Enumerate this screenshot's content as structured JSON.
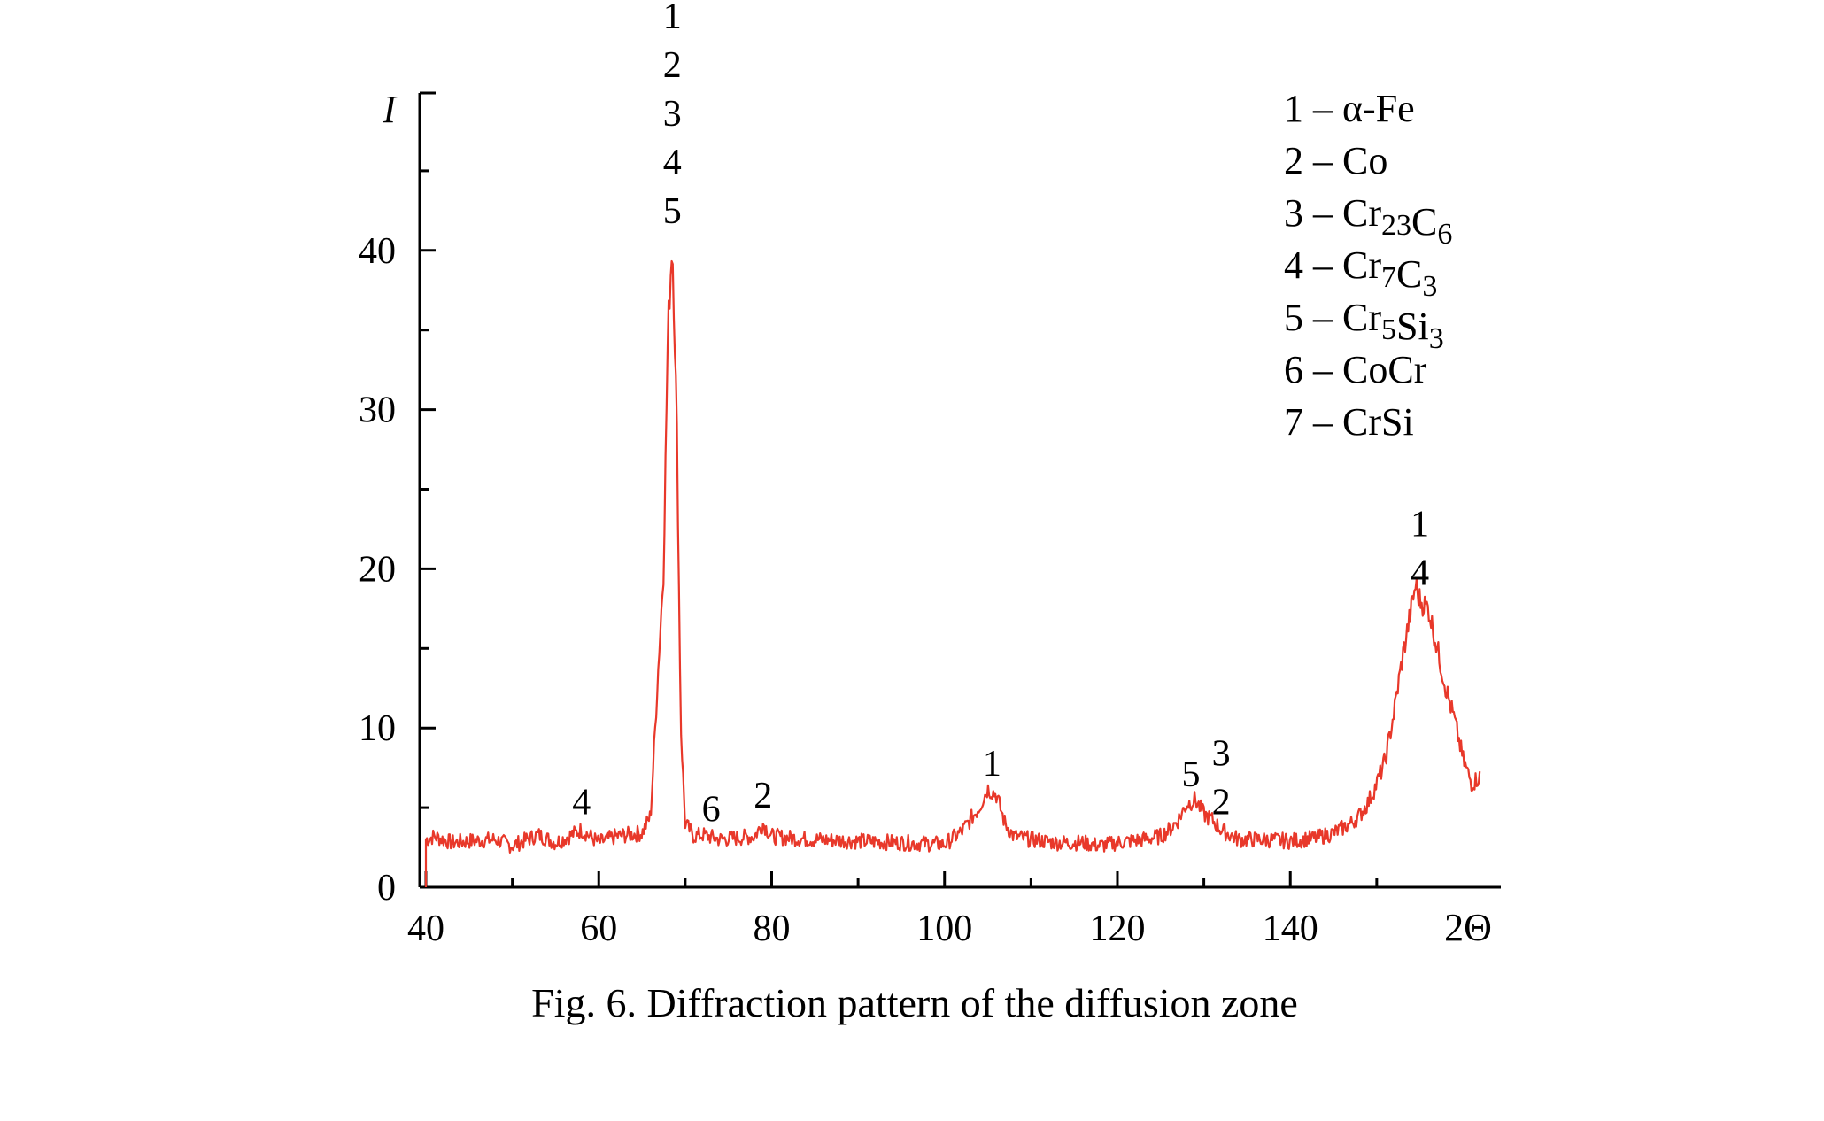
{
  "chart_data": {
    "type": "line",
    "title": "",
    "ylabel": "I",
    "xlabel": "2Θ",
    "xlim": [
      40,
      162
    ],
    "ylim": [
      0,
      50
    ],
    "x_ticks": [
      40,
      60,
      80,
      100,
      120,
      140
    ],
    "y_ticks": [
      0,
      10,
      20,
      30,
      40
    ],
    "grid": false,
    "legend_position": "top-right",
    "line_color": "#e8382a",
    "series": [
      {
        "x": [
          40,
          41,
          43,
          45,
          48,
          50,
          53,
          55,
          58,
          60,
          62,
          65,
          66,
          67,
          67.5,
          68,
          68.5,
          69,
          69.5,
          70,
          71,
          72,
          74,
          76,
          78,
          79,
          80,
          82,
          85,
          90,
          95,
          100,
          102,
          104,
          105,
          106,
          107,
          108,
          110,
          113,
          116,
          118,
          120,
          123,
          125,
          126,
          127,
          128,
          129,
          130,
          131,
          132,
          134,
          137,
          140,
          143,
          145,
          147,
          148,
          149,
          150,
          151,
          152,
          153,
          154,
          154.5,
          155,
          156,
          157,
          158,
          159,
          160,
          161,
          162
        ],
        "y": [
          3,
          3.2,
          2.8,
          2.9,
          3.0,
          2.6,
          3.3,
          2.8,
          3.6,
          2.8,
          3.2,
          3.4,
          4.5,
          15,
          20,
          35,
          40.7,
          30,
          10,
          4,
          3.2,
          3.3,
          3.0,
          3.1,
          3.2,
          4,
          3.2,
          3.1,
          3.0,
          2.9,
          2.8,
          2.7,
          3.5,
          5,
          6.2,
          5.8,
          4,
          3.2,
          3.0,
          2.8,
          2.8,
          2.6,
          2.8,
          3,
          3.2,
          3.6,
          4.2,
          5.2,
          5.5,
          4.6,
          4.2,
          3.6,
          3.0,
          3.0,
          2.9,
          3.1,
          3.4,
          4,
          4.5,
          5.3,
          6.5,
          8,
          11,
          14.5,
          17.5,
          19,
          18,
          17.5,
          15,
          12.5,
          10.5,
          8,
          6.5,
          7
        ]
      }
    ],
    "peak_labels": [
      {
        "x": 68.5,
        "text": "1"
      },
      {
        "x": 68.5,
        "text": "2"
      },
      {
        "x": 68.5,
        "text": "3"
      },
      {
        "x": 68.5,
        "text": "4"
      },
      {
        "x": 68.5,
        "text": "5"
      },
      {
        "x": 58,
        "text": "4"
      },
      {
        "x": 73,
        "text": "6"
      },
      {
        "x": 79,
        "text": "2"
      },
      {
        "x": 105.5,
        "text": "1"
      },
      {
        "x": 128.5,
        "text": "5"
      },
      {
        "x": 132,
        "text": "3"
      },
      {
        "x": 132,
        "text": "2"
      },
      {
        "x": 155,
        "text": "1"
      },
      {
        "x": 155,
        "text": "4"
      }
    ],
    "legend": [
      {
        "num": "1",
        "dash": " – ",
        "parts": [
          {
            "t": "α-Fe"
          }
        ]
      },
      {
        "num": "2",
        "dash": " – ",
        "parts": [
          {
            "t": "Co"
          }
        ]
      },
      {
        "num": "3",
        "dash": " – ",
        "parts": [
          {
            "t": "Cr"
          },
          {
            "t": "23",
            "sub": true
          },
          {
            "t": "C"
          },
          {
            "t": "6",
            "sub": true
          }
        ]
      },
      {
        "num": "4",
        "dash": " – ",
        "parts": [
          {
            "t": "Cr"
          },
          {
            "t": "7",
            "sub": true
          },
          {
            "t": "C"
          },
          {
            "t": "3",
            "sub": true
          }
        ]
      },
      {
        "num": "5",
        "dash": " – ",
        "parts": [
          {
            "t": "Cr"
          },
          {
            "t": "5",
            "sub": true
          },
          {
            "t": "Si"
          },
          {
            "t": "3",
            "sub": true
          }
        ]
      },
      {
        "num": "6",
        "dash": " – ",
        "parts": [
          {
            "t": "CoCr"
          }
        ]
      },
      {
        "num": "7",
        "dash": " – ",
        "parts": [
          {
            "t": "CrSi"
          }
        ]
      }
    ]
  },
  "caption": "Fig. 6. Diffraction pattern of the diffusion zone"
}
